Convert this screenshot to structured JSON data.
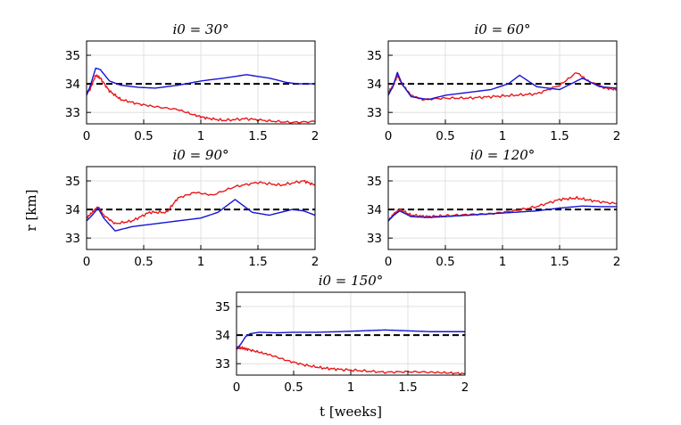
{
  "ylabel": "r [km]",
  "xlabel": "t [weeks]",
  "chart_data": [
    {
      "type": "line",
      "title": "i0 = 30°",
      "xlim": [
        0,
        2
      ],
      "ylim": [
        32.6,
        35.5
      ],
      "xticks": [
        0,
        0.5,
        1,
        1.5,
        2
      ],
      "xtick_labels": [
        "0",
        "0.5",
        "1",
        "1.5",
        "2"
      ],
      "yticks": [
        33,
        34,
        35
      ],
      "ytick_labels": [
        "33",
        "34",
        "35"
      ],
      "grid": true,
      "reference": 34,
      "series": [
        {
          "color": "#e8191c",
          "x": [
            0,
            0.03,
            0.08,
            0.12,
            0.2,
            0.3,
            0.45,
            0.6,
            0.8,
            0.95,
            1.05,
            1.2,
            1.4,
            1.6,
            1.8,
            2.0
          ],
          "y": [
            33.7,
            33.8,
            34.3,
            34.2,
            33.75,
            33.45,
            33.3,
            33.2,
            33.1,
            32.9,
            32.8,
            32.72,
            32.78,
            32.7,
            32.65,
            32.68
          ]
        },
        {
          "color": "#1414d6",
          "x": [
            0,
            0.03,
            0.08,
            0.12,
            0.2,
            0.3,
            0.45,
            0.6,
            0.8,
            1.0,
            1.2,
            1.4,
            1.6,
            1.75,
            1.85,
            2.0
          ],
          "y": [
            33.6,
            33.9,
            34.55,
            34.5,
            34.1,
            33.95,
            33.88,
            33.85,
            33.95,
            34.1,
            34.2,
            34.32,
            34.2,
            34.05,
            34.0,
            34.0
          ]
        }
      ]
    },
    {
      "type": "line",
      "title": "i0 = 60°",
      "xlim": [
        0,
        2
      ],
      "ylim": [
        32.6,
        35.5
      ],
      "xticks": [
        0,
        0.5,
        1,
        1.5,
        2
      ],
      "xtick_labels": [
        "0",
        "0.5",
        "1",
        "1.5",
        "2"
      ],
      "yticks": [
        33,
        34,
        35
      ],
      "ytick_labels": [
        "33",
        "34",
        "35"
      ],
      "grid": true,
      "reference": 34,
      "series": [
        {
          "color": "#e8191c",
          "x": [
            0,
            0.04,
            0.08,
            0.12,
            0.2,
            0.3,
            0.5,
            0.7,
            0.9,
            1.1,
            1.3,
            1.5,
            1.65,
            1.75,
            1.9,
            2.0
          ],
          "y": [
            33.7,
            33.9,
            34.3,
            34.0,
            33.6,
            33.45,
            33.5,
            33.5,
            33.55,
            33.6,
            33.65,
            33.95,
            34.4,
            34.1,
            33.85,
            33.8
          ]
        },
        {
          "color": "#1414d6",
          "x": [
            0,
            0.04,
            0.08,
            0.12,
            0.2,
            0.35,
            0.5,
            0.7,
            0.9,
            1.05,
            1.15,
            1.3,
            1.5,
            1.7,
            1.85,
            2.0
          ],
          "y": [
            33.6,
            33.9,
            34.4,
            34.0,
            33.55,
            33.45,
            33.6,
            33.7,
            33.8,
            34.0,
            34.3,
            33.9,
            33.8,
            34.2,
            33.9,
            33.85
          ]
        }
      ]
    },
    {
      "type": "line",
      "title": "i0 = 90°",
      "xlim": [
        0,
        2
      ],
      "ylim": [
        32.6,
        35.5
      ],
      "xticks": [
        0,
        0.5,
        1,
        1.5,
        2
      ],
      "xtick_labels": [
        "0",
        "0.5",
        "1",
        "1.5",
        "2"
      ],
      "yticks": [
        33,
        34,
        35
      ],
      "ytick_labels": [
        "33",
        "34",
        "35"
      ],
      "grid": true,
      "reference": 34,
      "series": [
        {
          "color": "#e8191c",
          "x": [
            0,
            0.05,
            0.1,
            0.15,
            0.25,
            0.4,
            0.55,
            0.7,
            0.8,
            0.95,
            1.1,
            1.3,
            1.5,
            1.7,
            1.9,
            2.0
          ],
          "y": [
            33.7,
            33.9,
            34.1,
            33.8,
            33.5,
            33.6,
            33.9,
            33.9,
            34.4,
            34.6,
            34.5,
            34.8,
            34.95,
            34.85,
            35.0,
            34.85
          ]
        },
        {
          "color": "#1414d6",
          "x": [
            0,
            0.05,
            0.1,
            0.15,
            0.25,
            0.4,
            0.6,
            0.8,
            1.0,
            1.15,
            1.3,
            1.45,
            1.6,
            1.8,
            1.9,
            2.0
          ],
          "y": [
            33.6,
            33.8,
            34.05,
            33.7,
            33.25,
            33.4,
            33.5,
            33.6,
            33.7,
            33.9,
            34.35,
            33.9,
            33.8,
            34.0,
            33.95,
            33.8
          ]
        }
      ]
    },
    {
      "type": "line",
      "title": "i0 = 120°",
      "xlim": [
        0,
        2
      ],
      "ylim": [
        32.6,
        35.5
      ],
      "xticks": [
        0,
        0.5,
        1,
        1.5,
        2
      ],
      "xtick_labels": [
        "0",
        "0.5",
        "1",
        "1.5",
        "2"
      ],
      "yticks": [
        33,
        34,
        35
      ],
      "ytick_labels": [
        "33",
        "34",
        "35"
      ],
      "grid": true,
      "reference": 34,
      "series": [
        {
          "color": "#e8191c",
          "x": [
            0,
            0.05,
            0.1,
            0.2,
            0.35,
            0.5,
            0.7,
            0.9,
            1.1,
            1.3,
            1.5,
            1.65,
            1.8,
            2.0
          ],
          "y": [
            33.6,
            33.85,
            34.0,
            33.8,
            33.75,
            33.78,
            33.82,
            33.85,
            33.95,
            34.1,
            34.35,
            34.4,
            34.3,
            34.2
          ]
        },
        {
          "color": "#1414d6",
          "x": [
            0,
            0.05,
            0.1,
            0.2,
            0.35,
            0.5,
            0.7,
            0.9,
            1.1,
            1.3,
            1.5,
            1.7,
            1.85,
            2.0
          ],
          "y": [
            33.6,
            33.8,
            33.95,
            33.75,
            33.72,
            33.75,
            33.8,
            33.85,
            33.9,
            33.95,
            34.05,
            34.12,
            34.1,
            34.1
          ]
        }
      ]
    },
    {
      "type": "line",
      "title": "i0 = 150°",
      "xlim": [
        0,
        2
      ],
      "ylim": [
        32.6,
        35.5
      ],
      "xticks": [
        0,
        0.5,
        1,
        1.5,
        2
      ],
      "xtick_labels": [
        "0",
        "0.5",
        "1",
        "1.5",
        "2"
      ],
      "yticks": [
        33,
        34,
        35
      ],
      "ytick_labels": [
        "33",
        "34",
        "35"
      ],
      "grid": true,
      "reference": 34,
      "series": [
        {
          "color": "#e8191c",
          "x": [
            0,
            0.05,
            0.1,
            0.2,
            0.3,
            0.45,
            0.6,
            0.75,
            0.9,
            1.1,
            1.3,
            1.5,
            1.7,
            1.85,
            2.0
          ],
          "y": [
            33.55,
            33.55,
            33.5,
            33.4,
            33.3,
            33.1,
            32.95,
            32.85,
            32.8,
            32.75,
            32.7,
            32.72,
            32.7,
            32.68,
            32.65
          ]
        },
        {
          "color": "#1414d6",
          "x": [
            0,
            0.04,
            0.08,
            0.12,
            0.2,
            0.35,
            0.5,
            0.7,
            0.9,
            1.1,
            1.3,
            1.5,
            1.7,
            1.85,
            2.0
          ],
          "y": [
            33.5,
            33.7,
            33.95,
            34.05,
            34.1,
            34.08,
            34.1,
            34.1,
            34.12,
            34.15,
            34.18,
            34.15,
            34.12,
            34.12,
            34.12
          ]
        }
      ]
    }
  ]
}
